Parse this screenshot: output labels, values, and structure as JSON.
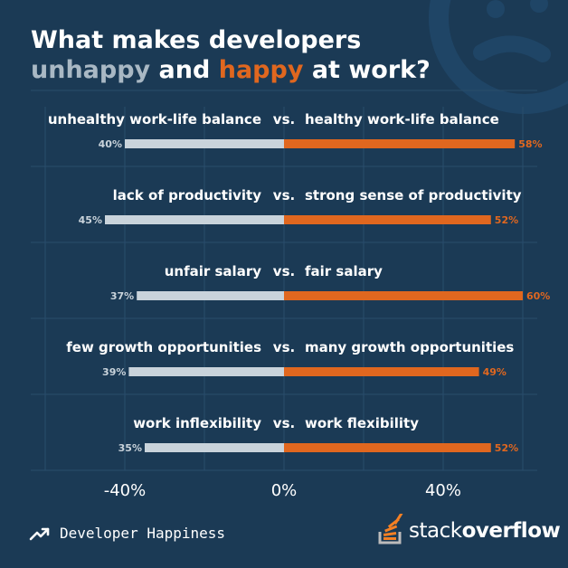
{
  "title": {
    "line1": "What makes developers",
    "unhappy_word": "unhappy",
    "and_word": " and ",
    "happy_word": "happy",
    "tail": " at work?"
  },
  "colors": {
    "background": "#1b3a55",
    "unhappy": "#c9d3db",
    "happy": "#e0671f",
    "grid": "#2a4d6b"
  },
  "chart_data": {
    "type": "bar",
    "orientation": "horizontal-diverging",
    "title": "What makes developers unhappy and happy at work?",
    "xlim": [
      -60,
      60
    ],
    "xticks": [
      -40,
      0,
      40
    ],
    "xtick_labels": [
      "-40%",
      "0%",
      "40%"
    ],
    "grid": true,
    "separator": "vs.",
    "rows": [
      {
        "unhappy_label": "unhealthy work-life balance",
        "happy_label": "healthy work-life balance",
        "unhappy_value": 40,
        "happy_value": 58,
        "unhappy_text": "40%",
        "happy_text": "58%"
      },
      {
        "unhappy_label": "lack of productivity",
        "happy_label": "strong sense of productivity",
        "unhappy_value": 45,
        "happy_value": 52,
        "unhappy_text": "45%",
        "happy_text": "52%"
      },
      {
        "unhappy_label": "unfair salary",
        "happy_label": "fair salary",
        "unhappy_value": 37,
        "happy_value": 60,
        "unhappy_text": "37%",
        "happy_text": "60%"
      },
      {
        "unhappy_label": "few growth opportunities",
        "happy_label": "many growth opportunities",
        "unhappy_value": 39,
        "happy_value": 49,
        "unhappy_text": "39%",
        "happy_text": "49%"
      },
      {
        "unhappy_label": "work inflexibility",
        "happy_label": "work flexibility",
        "unhappy_value": 35,
        "happy_value": 52,
        "unhappy_text": "35%",
        "happy_text": "52%"
      }
    ]
  },
  "footer": {
    "icon": "trending-up-icon",
    "text": "Developer Happiness"
  },
  "logo": {
    "icon": "stack-overflow-icon",
    "word1": "stack",
    "word2": "overflow"
  }
}
